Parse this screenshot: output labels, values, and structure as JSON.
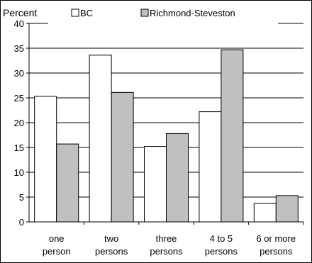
{
  "chart_data": {
    "type": "bar",
    "ylabel": "Percent",
    "ylim": [
      0,
      40
    ],
    "yticks": [
      0,
      5,
      10,
      15,
      20,
      25,
      30,
      35,
      40
    ],
    "grid": true,
    "legend_position": "top",
    "categories": [
      [
        "one",
        "person"
      ],
      [
        "two",
        "persons"
      ],
      [
        "three",
        "persons"
      ],
      [
        "4 to 5",
        "persons"
      ],
      [
        "6 or more",
        "persons"
      ]
    ],
    "series": [
      {
        "name": "BC",
        "color": "#ffffff",
        "values": [
          25.3,
          33.6,
          15.2,
          22.2,
          3.7
        ]
      },
      {
        "name": "Richmond-Steveston",
        "color": "#c0c0c0",
        "values": [
          15.7,
          26.1,
          17.8,
          34.7,
          5.3
        ]
      }
    ]
  }
}
